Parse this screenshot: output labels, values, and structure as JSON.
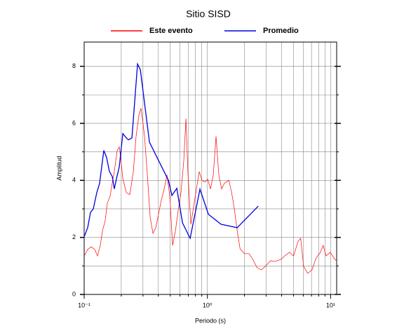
{
  "chart_data": {
    "type": "line",
    "title": "Sitio SISD",
    "xlabel": "Periodo (s)",
    "ylabel": "Amplitud",
    "xscale": "log",
    "grid": true,
    "legend": "top",
    "xlim": [
      0.1,
      11.2
    ],
    "ylim": [
      0,
      8.85
    ],
    "xticks": [
      {
        "value": 0.1,
        "label": "10⁻¹"
      },
      {
        "value": 1,
        "label": "10⁰"
      },
      {
        "value": 10,
        "label": "10¹"
      }
    ],
    "xminor_ticks": [
      0.2,
      0.3,
      0.4,
      0.5,
      0.6,
      0.7,
      0.8,
      0.9,
      2,
      3,
      4,
      5,
      6,
      7,
      8,
      9
    ],
    "yticks": [
      0,
      2,
      4,
      6,
      8
    ],
    "yminor_ticks": [
      1,
      3,
      5,
      7
    ],
    "series": [
      {
        "name": "Este evento",
        "color": "#ff0000",
        "x": [
          0.1,
          0.1068,
          0.114,
          0.1218,
          0.1283,
          0.1352,
          0.1406,
          0.1482,
          0.1542,
          0.1625,
          0.169,
          0.1758,
          0.1853,
          0.1928,
          0.1979,
          0.2058,
          0.2197,
          0.2346,
          0.2505,
          0.2639,
          0.2781,
          0.2894,
          0.297,
          0.3091,
          0.3258,
          0.3433,
          0.3617,
          0.3812,
          0.4017,
          0.4233,
          0.446,
          0.47,
          0.4953,
          0.5219,
          0.5499,
          0.5795,
          0.6106,
          0.6434,
          0.6695,
          0.6966,
          0.7341,
          0.7735,
          0.8151,
          0.8589,
          0.9051,
          0.9537,
          1.005,
          1.059,
          1.116,
          1.176,
          1.239,
          1.306,
          1.376,
          1.494,
          1.574,
          1.659,
          1.748,
          1.842,
          1.997,
          2.182,
          2.337,
          2.53,
          2.74,
          2.96,
          3.25,
          3.57,
          3.96,
          4.23,
          4.64,
          5.01,
          5.43,
          5.72,
          6.03,
          6.52,
          7.06,
          7.64,
          8.27,
          8.71,
          9.18,
          9.94,
          10.63,
          11.23
        ],
        "values": [
          1.35,
          1.58,
          1.67,
          1.58,
          1.35,
          1.72,
          2.22,
          2.59,
          3.2,
          3.45,
          3.9,
          4.31,
          5.05,
          5.17,
          4.8,
          4.06,
          3.57,
          3.5,
          4.31,
          5.54,
          6.28,
          6.53,
          6.16,
          5.54,
          4.19,
          2.71,
          2.14,
          2.34,
          2.83,
          3.32,
          3.7,
          4.19,
          3.45,
          1.72,
          2.22,
          2.96,
          3.57,
          4.68,
          6.16,
          4.19,
          2.46,
          3.08,
          3.7,
          4.31,
          4.0,
          3.94,
          4.04,
          3.7,
          4.19,
          5.54,
          4.19,
          3.7,
          3.9,
          4.0,
          3.57,
          2.96,
          2.22,
          1.6,
          1.43,
          1.43,
          1.23,
          0.94,
          0.86,
          0.99,
          1.18,
          1.16,
          1.23,
          1.35,
          1.48,
          1.35,
          1.85,
          1.97,
          0.99,
          0.74,
          0.86,
          1.28,
          1.48,
          1.72,
          1.35,
          1.48,
          1.28,
          1.16
        ]
      },
      {
        "name": "Promedio",
        "color": "#0000dd",
        "x": [
          0.1,
          0.1068,
          0.1126,
          0.1186,
          0.1266,
          0.1335,
          0.1443,
          0.1522,
          0.1604,
          0.169,
          0.1758,
          0.1829,
          0.1928,
          0.2058,
          0.2197,
          0.2286,
          0.2441,
          0.271,
          0.2856,
          0.305,
          0.3388,
          0.483,
          0.5156,
          0.565,
          0.628,
          0.725,
          0.871,
          1.02,
          1.29,
          1.747,
          2.59
        ],
        "values": [
          2.02,
          2.34,
          2.88,
          3.0,
          3.57,
          3.9,
          5.05,
          4.8,
          4.31,
          4.14,
          3.7,
          4.06,
          4.48,
          5.64,
          5.49,
          5.42,
          5.49,
          8.08,
          7.88,
          6.9,
          5.34,
          4.0,
          3.47,
          3.72,
          2.51,
          1.97,
          3.69,
          2.81,
          2.46,
          2.34,
          3.1
        ]
      }
    ]
  }
}
